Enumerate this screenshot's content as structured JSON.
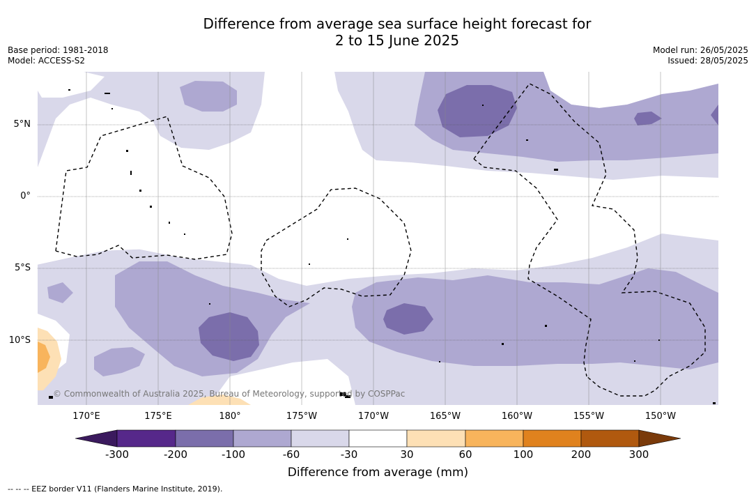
{
  "title": {
    "line1": "Difference from average sea surface height forecast for",
    "line2": "2 to 15 June 2025"
  },
  "meta": {
    "base_period": "Base period: 1981-2018",
    "model": "Model: ACCESS-S2",
    "model_run": "Model run: 26/05/2025",
    "issued": "Issued: 28/05/2025"
  },
  "map": {
    "lat_labels": [
      "5°N",
      "0°",
      "5°S",
      "10°S"
    ],
    "lon_labels": [
      "170°E",
      "175°E",
      "180°",
      "175°W",
      "170°W",
      "165°W",
      "160°W",
      "155°W",
      "150°W"
    ],
    "copyright": "© Commonwealth of Australia 2025, Bureau of Meteorology, supported by COSPPac",
    "colors": {
      "neg300": "#3b1a5e",
      "neg200": "#56288a",
      "neg100": "#7b6eab",
      "neg60": "#aea8d1",
      "neg30": "#d9d8ea",
      "zero": "#ffffff",
      "pos30": "#fde0b5",
      "pos60": "#f8b45c",
      "pos100": "#e0821e",
      "pos200": "#b0590f",
      "pos300": "#7a3a0a"
    }
  },
  "colorbar": {
    "ticks": [
      "-300",
      "-200",
      "-100",
      "-60",
      "-30",
      "30",
      "60",
      "100",
      "200",
      "300"
    ],
    "label": "Difference from average (mm)"
  },
  "footer": "-- -- -- EEZ border V11 (Flanders Marine Institute, 2019)."
}
